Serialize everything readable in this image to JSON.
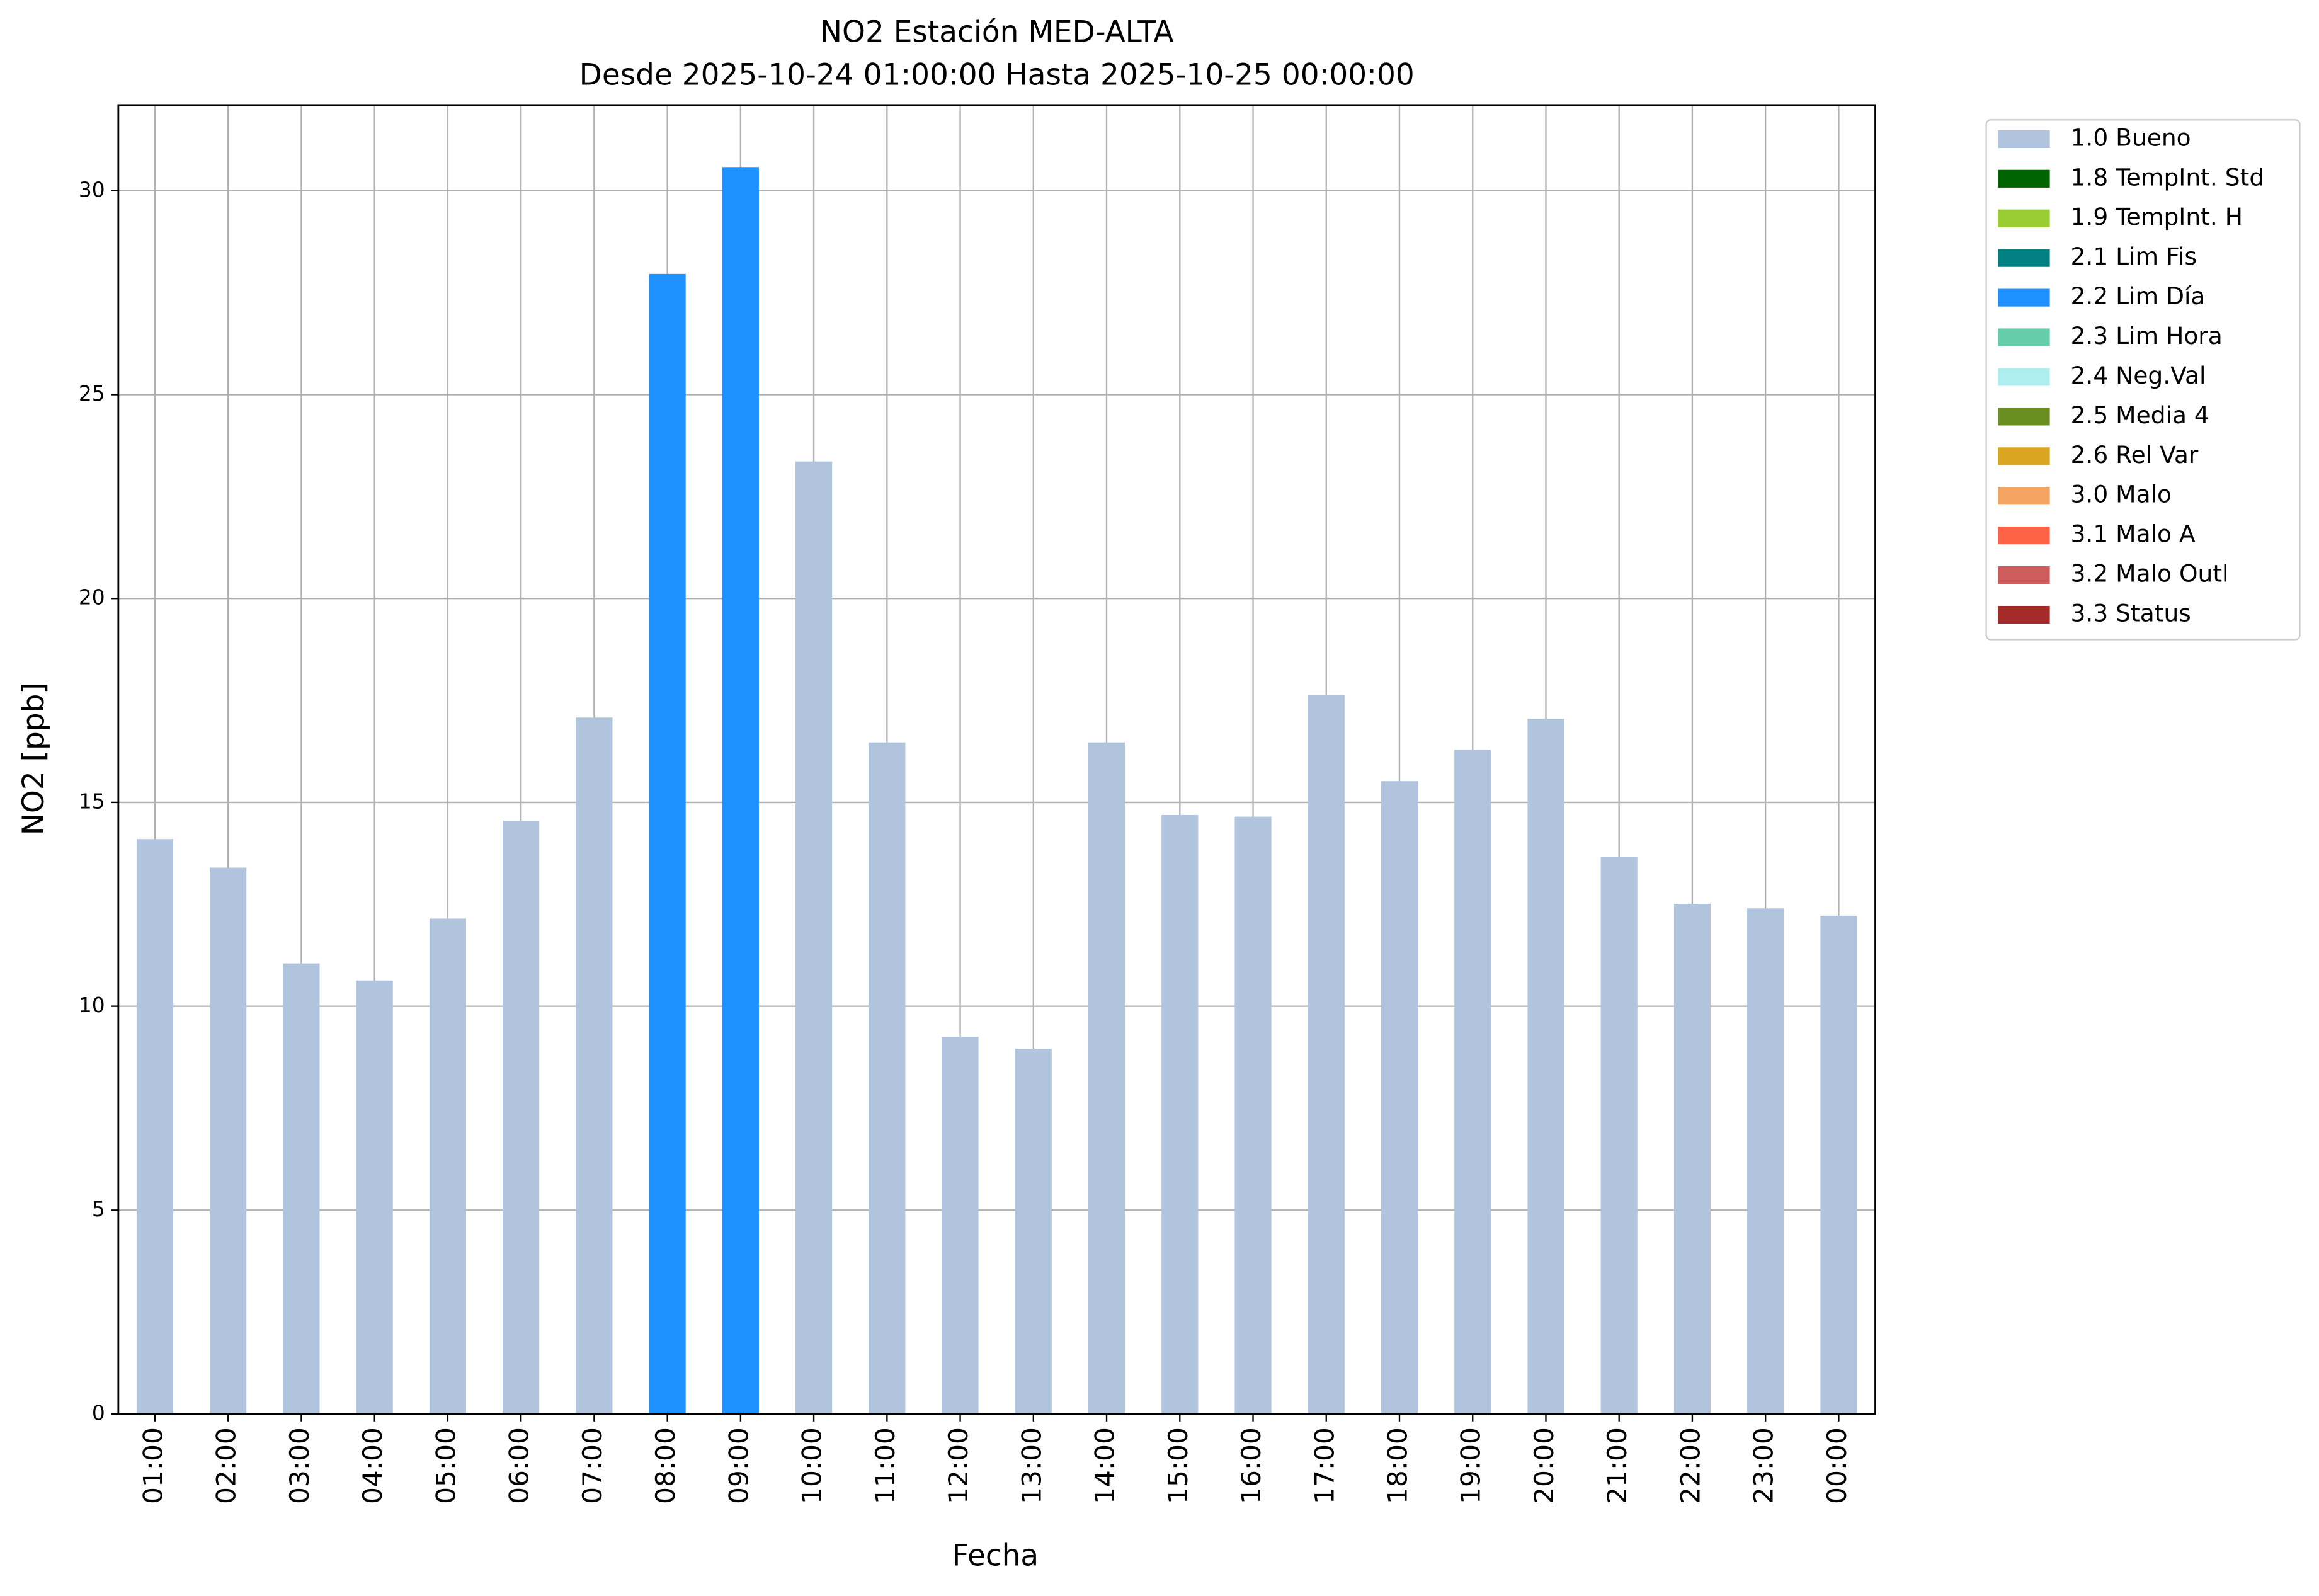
{
  "chart_data": {
    "type": "bar",
    "stacked": true,
    "title": "NO2 Estación MED-ALTA",
    "subtitle": "Desde 2025-10-24 01:00:00 Hasta 2025-10-25 00:00:00",
    "x_label": "Fecha",
    "y_label": "NO2 [ppb]",
    "categories": [
      "01:00",
      "02:00",
      "03:00",
      "04:00",
      "05:00",
      "06:00",
      "07:00",
      "08:00",
      "09:00",
      "10:00",
      "11:00",
      "12:00",
      "13:00",
      "14:00",
      "15:00",
      "16:00",
      "17:00",
      "18:00",
      "19:00",
      "20:00",
      "21:00",
      "22:00",
      "23:00",
      "00:00"
    ],
    "series": [
      {
        "name": "1.0 Bueno",
        "color": "#b0c4de",
        "values": [
          14.1,
          13.4,
          11.05,
          10.63,
          12.15,
          14.55,
          17.08,
          null,
          null,
          23.36,
          16.47,
          9.25,
          8.96,
          16.47,
          14.69,
          14.65,
          17.63,
          15.52,
          16.29,
          17.05,
          13.67,
          12.51,
          12.4,
          12.22
        ]
      },
      {
        "name": "1.8 TempInt. Std",
        "color": "#006400",
        "values": [
          null,
          null,
          null,
          null,
          null,
          null,
          null,
          null,
          null,
          null,
          null,
          null,
          null,
          null,
          null,
          null,
          null,
          null,
          null,
          null,
          null,
          null,
          null,
          null
        ]
      },
      {
        "name": "1.9 TempInt. H",
        "color": "#9acd32",
        "values": [
          null,
          null,
          null,
          null,
          null,
          null,
          null,
          null,
          null,
          null,
          null,
          null,
          null,
          null,
          null,
          null,
          null,
          null,
          null,
          null,
          null,
          null,
          null,
          null
        ]
      },
      {
        "name": "2.1 Lim Fis",
        "color": "#008080",
        "values": [
          null,
          null,
          null,
          null,
          null,
          null,
          null,
          null,
          null,
          null,
          null,
          null,
          null,
          null,
          null,
          null,
          null,
          null,
          null,
          null,
          null,
          null,
          null,
          null
        ]
      },
      {
        "name": "2.2 Lim Día",
        "color": "#1e90ff",
        "values": [
          null,
          null,
          null,
          null,
          null,
          null,
          null,
          27.96,
          30.58,
          null,
          null,
          null,
          null,
          null,
          null,
          null,
          null,
          null,
          null,
          null,
          null,
          null,
          null,
          null
        ]
      },
      {
        "name": "2.3 Lim Hora",
        "color": "#66cdaa",
        "values": [
          null,
          null,
          null,
          null,
          null,
          null,
          null,
          null,
          null,
          null,
          null,
          null,
          null,
          null,
          null,
          null,
          null,
          null,
          null,
          null,
          null,
          null,
          null,
          null
        ]
      },
      {
        "name": "2.4 Neg.Val",
        "color": "#afeeee",
        "values": [
          null,
          null,
          null,
          null,
          null,
          null,
          null,
          null,
          null,
          null,
          null,
          null,
          null,
          null,
          null,
          null,
          null,
          null,
          null,
          null,
          null,
          null,
          null,
          null
        ]
      },
      {
        "name": "2.5 Media 4",
        "color": "#6b8e23",
        "values": [
          null,
          null,
          null,
          null,
          null,
          null,
          null,
          null,
          null,
          null,
          null,
          null,
          null,
          null,
          null,
          null,
          null,
          null,
          null,
          null,
          null,
          null,
          null,
          null
        ]
      },
      {
        "name": "2.6 Rel Var",
        "color": "#daa520",
        "values": [
          null,
          null,
          null,
          null,
          null,
          null,
          null,
          null,
          null,
          null,
          null,
          null,
          null,
          null,
          null,
          null,
          null,
          null,
          null,
          null,
          null,
          null,
          null,
          null
        ]
      },
      {
        "name": "3.0 Malo",
        "color": "#f4a460",
        "values": [
          null,
          null,
          null,
          null,
          null,
          null,
          null,
          null,
          null,
          null,
          null,
          null,
          null,
          null,
          null,
          null,
          null,
          null,
          null,
          null,
          null,
          null,
          null,
          null
        ]
      },
      {
        "name": "3.1 Malo A",
        "color": "#ff6347",
        "values": [
          null,
          null,
          null,
          null,
          null,
          null,
          null,
          null,
          null,
          null,
          null,
          null,
          null,
          null,
          null,
          null,
          null,
          null,
          null,
          null,
          null,
          null,
          null,
          null
        ]
      },
      {
        "name": "3.2 Malo Outl",
        "color": "#cd5c5c",
        "values": [
          null,
          null,
          null,
          null,
          null,
          null,
          null,
          null,
          null,
          null,
          null,
          null,
          null,
          null,
          null,
          null,
          null,
          null,
          null,
          null,
          null,
          null,
          null,
          null
        ]
      },
      {
        "name": "3.3 Status",
        "color": "#a52a2a",
        "values": [
          null,
          null,
          null,
          null,
          null,
          null,
          null,
          null,
          null,
          null,
          null,
          null,
          null,
          null,
          null,
          null,
          null,
          null,
          null,
          null,
          null,
          null,
          null,
          null
        ]
      }
    ],
    "ylim": [
      0,
      32.1
    ],
    "yticks": [
      0,
      5,
      10,
      15,
      20,
      25,
      30
    ],
    "grid": true,
    "legend": "outside-right"
  }
}
